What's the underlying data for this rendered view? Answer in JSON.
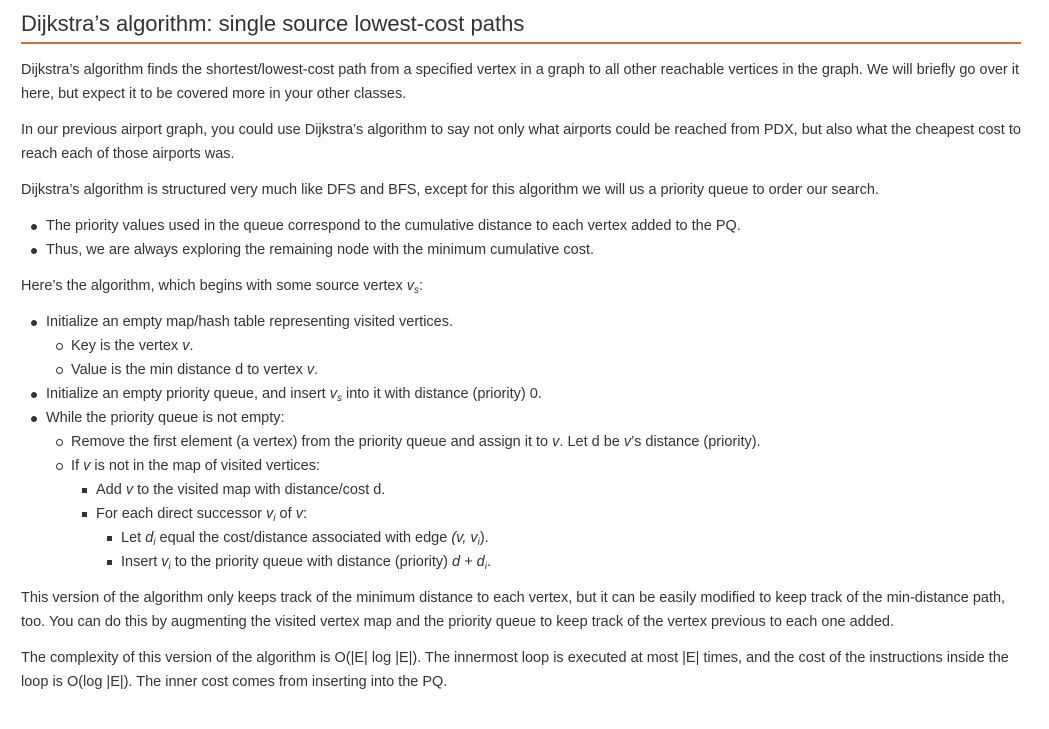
{
  "title": "Dijkstra’s algorithm: single source lowest-cost paths",
  "accent_color": "#d96a37",
  "intro": {
    "p1": "Dijkstra’s algorithm finds the shortest/lowest-cost path from a specified vertex in a graph to all other reachable vertices in the graph. We will briefly go over it here, but expect it to be covered more in your other classes.",
    "p2": "In our previous airport graph, you could use Dijkstra’s algorithm to say not only what airports could be reached from PDX, but also what the cheapest cost to reach each of those airports was.",
    "p3": "Dijkstra’s algorithm is structured very much like DFS and BFS, except for this algorithm we will us a priority queue to order our search."
  },
  "pq_bullets": [
    "The priority values used in the queue correspond to the cumulative distance to each vertex added to the PQ.",
    "Thus, we are always exploring the remaining node with the minimum cumulative cost."
  ],
  "algo_intro": {
    "before": "Here’s the algorithm, which begins with some source vertex ",
    "var": "v",
    "sub": "s",
    "after": ":"
  },
  "algo": {
    "init_map": "Initialize an empty map/hash table representing visited vertices.",
    "key_before": "Key is the vertex ",
    "key_var": "v",
    "key_after": ".",
    "value_before": "Value is the min distance d to vertex ",
    "value_var": "v",
    "value_after": ".",
    "init_pq_before": "Initialize an empty priority queue, and insert ",
    "init_pq_var": "v",
    "init_pq_sub": "s",
    "init_pq_after": " into it with distance (priority) 0.",
    "while": "While the priority queue is not empty:",
    "remove_before": "Remove the first element (a vertex) from the priority queue and assign it to ",
    "remove_var1": "v",
    "remove_mid": ". Let d be ",
    "remove_var2": "v",
    "remove_after": "’s distance (priority).",
    "if_before": "If ",
    "if_var": "v",
    "if_after": " is not in the map of visited vertices:",
    "add_before": "Add ",
    "add_var": "v",
    "add_after": " to the visited map with distance/cost d.",
    "for_before": "For each direct successor ",
    "for_var": "v",
    "for_sub": "i",
    "for_mid": " of ",
    "for_var2": "v",
    "for_after": ":",
    "let_before": "Let ",
    "let_var": "d",
    "let_sub": "i",
    "let_mid": " equal the cost/distance associated with edge ",
    "let_edge": "(v, v",
    "let_edge_sub": "i",
    "let_after": ").",
    "insert_before": "Insert ",
    "insert_var": "v",
    "insert_sub": "i",
    "insert_mid": " to the priority queue with distance (priority) ",
    "insert_expr": "d + d",
    "insert_expr_sub": "i",
    "insert_after": "."
  },
  "outro": {
    "p5": "This version of the algorithm only keeps track of the minimum distance to each vertex, but it can be easily modified to keep track of the min-distance path, too. You can do this by augmenting the visited vertex map and the priority queue to keep track of the vertex previous to each one added.",
    "p6": "The complexity of this version of the algorithm is O(|E| log |E|). The innermost loop is executed at most |E| times, and the cost of the instructions inside the loop is O(log |E|). The inner cost comes from inserting into the PQ."
  }
}
